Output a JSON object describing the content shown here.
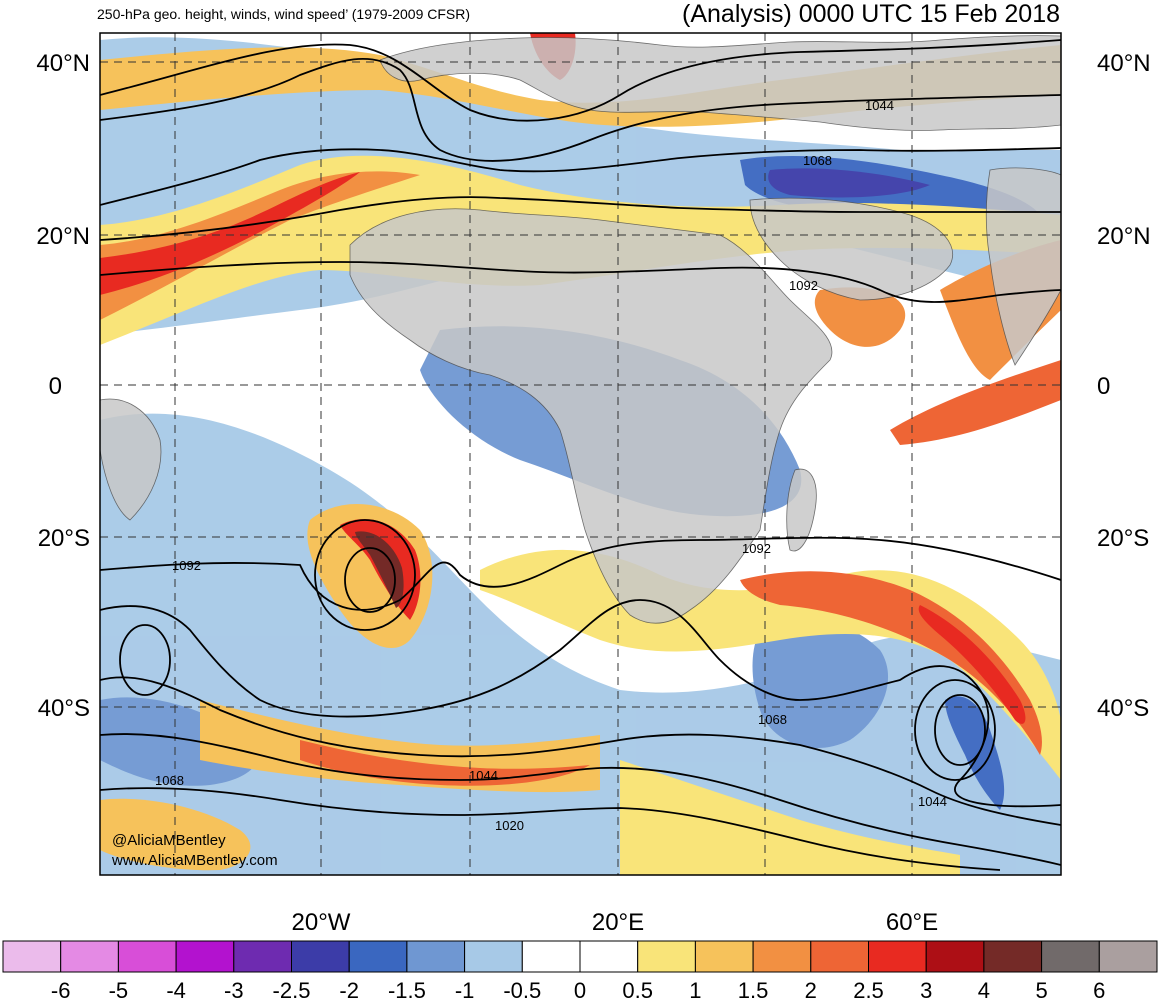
{
  "header": {
    "left_title": "250-hPa geo. height, winds, wind speed’ (1979-2009 CFSR)",
    "right_title": "(Analysis) 0000 UTC 15 Feb 2018"
  },
  "map": {
    "lat_labels": [
      "40°N",
      "20°N",
      "0",
      "20°S",
      "40°S"
    ],
    "lon_labels": [
      "20°W",
      "20°E",
      "60°E"
    ],
    "contour_labels": [
      "1044",
      "1068",
      "1092",
      "1092",
      "1092",
      "1068",
      "1068",
      "1044",
      "1044",
      "1020"
    ],
    "credits": [
      "@AliciaMBentley",
      "www.AliciaMBentley.com"
    ],
    "land_color": "#c8c8c8",
    "ocean_color": "#ffffff"
  },
  "colorbar": {
    "labels": [
      "-6",
      "-5",
      "-4",
      "-3",
      "-2.5",
      "-2",
      "-1.5",
      "-1",
      "-0.5",
      "0",
      "0.5",
      "1",
      "1.5",
      "2",
      "2.5",
      "3",
      "4",
      "5",
      "6"
    ],
    "colors": [
      "#ebbbeb",
      "#e48ae4",
      "#d84ed8",
      "#b312cf",
      "#6e2bb0",
      "#3c3ca8",
      "#3a67c0",
      "#6f97d2",
      "#a7c9e7",
      "#ffffff",
      "#ffffff",
      "#f9e479",
      "#f6c25b",
      "#f29042",
      "#ee6535",
      "#e82a21",
      "#ad0f15",
      "#742a27",
      "#716a6a",
      "#aa9f9f"
    ]
  }
}
